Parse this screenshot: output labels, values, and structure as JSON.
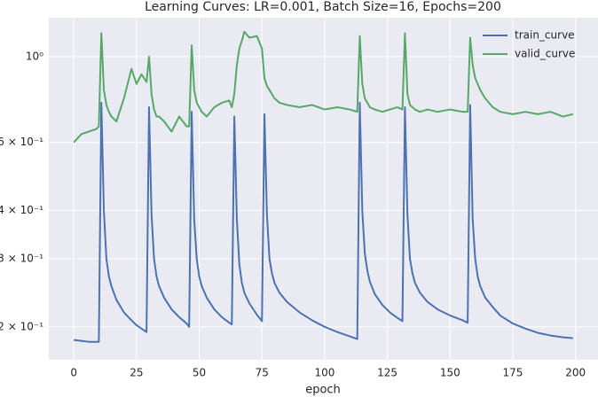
{
  "chart_data": {
    "type": "line",
    "title": "Learning Curves: LR=0.001, Batch Size=16, Epochs=200",
    "x_label": "epoch",
    "x": [
      0,
      3,
      6,
      9,
      10,
      11,
      12,
      13,
      14,
      15,
      17,
      20,
      23,
      25,
      27,
      29,
      30,
      31,
      32,
      33,
      34,
      36,
      39,
      42,
      45,
      46,
      47,
      48,
      49,
      50,
      51,
      53,
      56,
      59,
      62,
      63,
      64,
      65,
      66,
      67,
      68,
      70,
      73,
      75,
      76,
      77,
      78,
      79,
      80,
      82,
      85,
      90,
      95,
      100,
      105,
      110,
      113,
      114,
      115,
      116,
      117,
      118,
      120,
      123,
      126,
      129,
      131,
      132,
      133,
      134,
      135,
      136,
      138,
      141,
      145,
      150,
      155,
      157,
      158,
      159,
      160,
      161,
      162,
      164,
      167,
      170,
      175,
      180,
      185,
      190,
      195,
      199
    ],
    "series": [
      {
        "name": "train_curve",
        "color": "#4c72b0",
        "values": [
          0.185,
          0.184,
          0.183,
          0.183,
          0.183,
          0.76,
          0.4,
          0.3,
          0.27,
          0.255,
          0.235,
          0.218,
          0.208,
          0.202,
          0.198,
          0.194,
          0.74,
          0.39,
          0.3,
          0.27,
          0.255,
          0.238,
          0.222,
          0.212,
          0.204,
          0.2,
          0.72,
          0.38,
          0.3,
          0.27,
          0.255,
          0.238,
          0.222,
          0.212,
          0.205,
          0.203,
          0.7,
          0.38,
          0.29,
          0.26,
          0.245,
          0.23,
          0.215,
          0.207,
          0.71,
          0.39,
          0.3,
          0.275,
          0.26,
          0.245,
          0.232,
          0.218,
          0.208,
          0.2,
          0.194,
          0.189,
          0.186,
          0.76,
          0.4,
          0.31,
          0.28,
          0.262,
          0.243,
          0.228,
          0.218,
          0.211,
          0.207,
          0.74,
          0.39,
          0.3,
          0.275,
          0.26,
          0.245,
          0.232,
          0.222,
          0.214,
          0.208,
          0.205,
          0.75,
          0.38,
          0.3,
          0.27,
          0.255,
          0.238,
          0.225,
          0.214,
          0.204,
          0.198,
          0.193,
          0.19,
          0.188,
          0.187
        ]
      },
      {
        "name": "valid_curve",
        "color": "#55a868",
        "values": [
          0.6,
          0.63,
          0.64,
          0.65,
          0.66,
          1.15,
          0.82,
          0.75,
          0.72,
          0.7,
          0.68,
          0.78,
          0.93,
          0.85,
          0.9,
          0.86,
          1.0,
          0.8,
          0.73,
          0.7,
          0.7,
          0.68,
          0.64,
          0.7,
          0.66,
          0.66,
          1.07,
          0.82,
          0.76,
          0.74,
          0.72,
          0.7,
          0.74,
          0.76,
          0.77,
          0.74,
          0.8,
          0.95,
          1.05,
          1.1,
          1.16,
          1.12,
          1.13,
          1.05,
          0.88,
          0.84,
          0.82,
          0.8,
          0.78,
          0.76,
          0.75,
          0.74,
          0.75,
          0.73,
          0.74,
          0.73,
          0.72,
          1.13,
          0.85,
          0.78,
          0.76,
          0.74,
          0.73,
          0.72,
          0.73,
          0.74,
          0.73,
          1.15,
          0.8,
          0.75,
          0.74,
          0.73,
          0.72,
          0.73,
          0.72,
          0.73,
          0.72,
          0.72,
          1.12,
          0.95,
          0.88,
          0.85,
          0.82,
          0.78,
          0.74,
          0.72,
          0.71,
          0.72,
          0.71,
          0.72,
          0.7,
          0.71
        ]
      }
    ],
    "xlim": [
      -9.95,
      208.95
    ],
    "xticks": [
      0,
      25,
      50,
      75,
      100,
      125,
      150,
      175,
      200
    ],
    "ylim": [
      0.1644,
      1.261
    ],
    "y_log": true,
    "yticks": [
      {
        "value": 1,
        "label": "10⁰"
      },
      {
        "value": 0.6,
        "label": "6 × 10⁻¹"
      },
      {
        "value": 0.4,
        "label": "4 × 10⁻¹"
      },
      {
        "value": 0.3,
        "label": "3 × 10⁻¹"
      },
      {
        "value": 0.2,
        "label": "2 × 10⁻¹"
      }
    ],
    "grid": true,
    "legend": "upper right"
  }
}
